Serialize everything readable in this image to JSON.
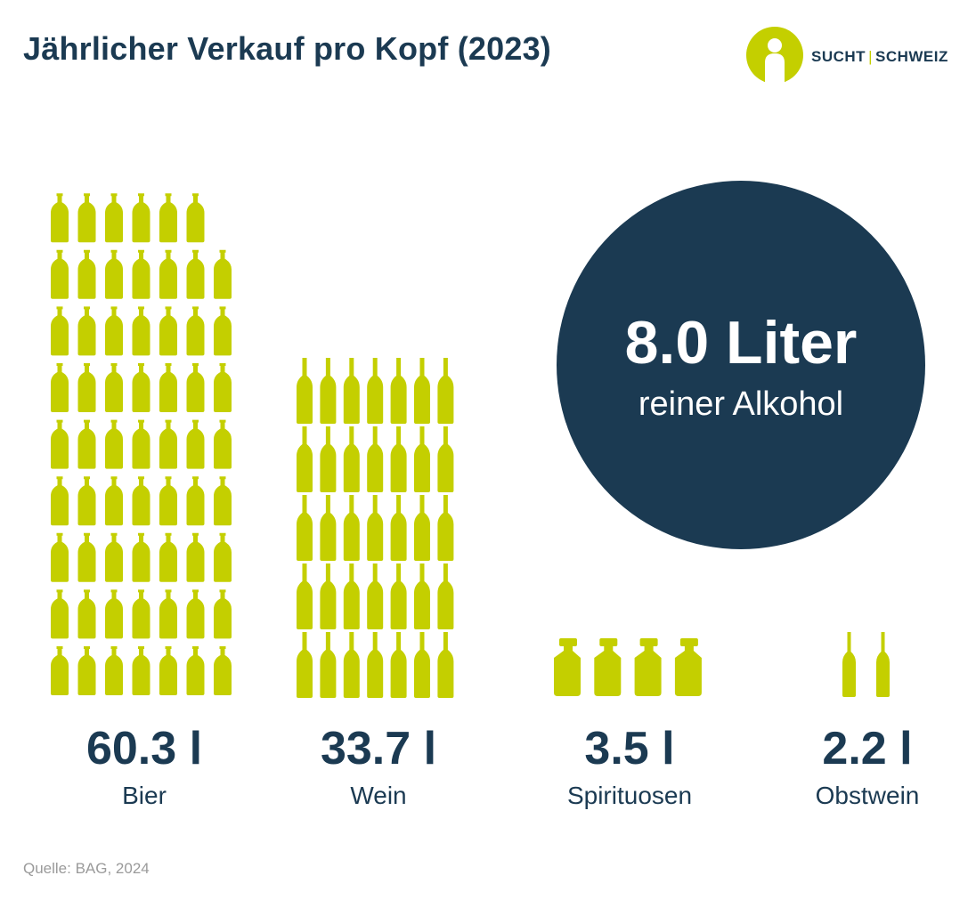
{
  "header": {
    "title": "Jährlicher Verkauf pro Kopf (2023)"
  },
  "logo": {
    "icon": "person-circle-icon",
    "part1": "SUCHT",
    "part2": "SCHWEIZ"
  },
  "bubble": {
    "value": "8.0 Liter",
    "label": "reiner Alkohol"
  },
  "source": "Quelle: BAG, 2024",
  "colors": {
    "accent": "#c4cf00",
    "navy": "#1b3a52",
    "muted": "#9a9a9a"
  },
  "chart_data": {
    "type": "pictograph",
    "unit": "l",
    "categories": [
      "Bier",
      "Wein",
      "Spirituosen",
      "Obstwein"
    ],
    "values": [
      60.3,
      33.7,
      3.5,
      2.2
    ],
    "value_labels": [
      "60.3 l",
      "33.7 l",
      "3.5 l",
      "2.2 l"
    ],
    "icon_counts": [
      62,
      35,
      4,
      2
    ],
    "icons": [
      "beer-bottle-icon",
      "wine-bottle-icon",
      "spirits-bottle-icon",
      "cider-bottle-icon"
    ],
    "grid": false
  }
}
